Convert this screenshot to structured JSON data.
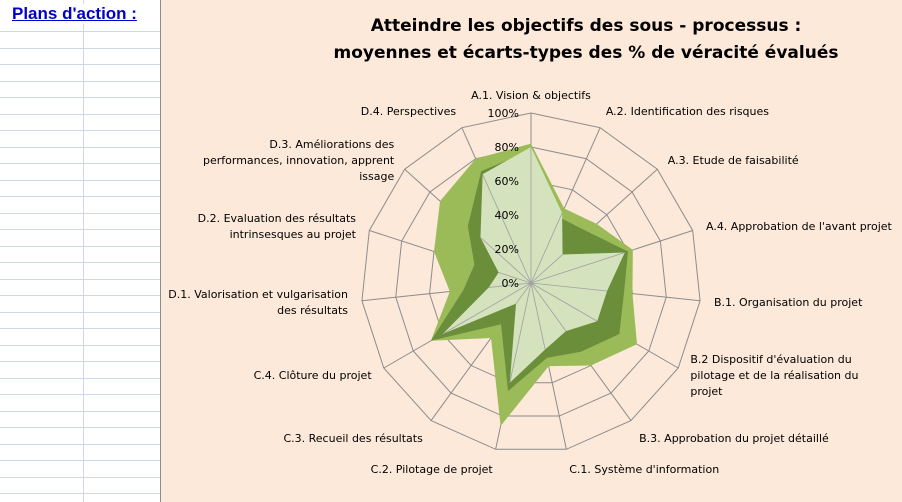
{
  "sheet": {
    "title": "Plans d'action :"
  },
  "chart_data": {
    "type": "radar",
    "title": "Atteindre les objectifs des sous - processus :",
    "subtitle": "moyennes et écarts-types des % de véracité évalués",
    "categories": [
      [
        "A.1. Vision & objectifs"
      ],
      [
        "A.2. Identification des risques"
      ],
      [
        "A.3. Etude de faisabilité"
      ],
      [
        "A.4. Approbation de l'avant projet"
      ],
      [
        "B.1. Organisation du projet"
      ],
      [
        "B.2 Dispositif d'évaluation du",
        "pilotage et de la réalisation du",
        "projet"
      ],
      [
        "B.3. Approbation du projet détaillé"
      ],
      [
        "C.1. Système d'information"
      ],
      [
        "C.2. Pilotage de projet"
      ],
      [
        "C.3. Recueil des résultats"
      ],
      [
        "C.4. Clôture du projet"
      ],
      [
        "D.1. Valorisation et vulgarisation",
        "des résultats"
      ],
      [
        "D.2. Evaluation des résultats",
        "intrinsesques au projet"
      ],
      [
        "D.3. Améliorations des",
        "performances, innovation, apprent",
        "issage"
      ],
      [
        "D.4. Perspectives"
      ]
    ],
    "ylim": [
      0,
      100
    ],
    "ticks": [
      "0%",
      "20%",
      "40%",
      "60%",
      "80%",
      "100%"
    ],
    "grid": true,
    "legend": "none",
    "series": [
      {
        "values": [
          82,
          48,
          52,
          63,
          60,
          72,
          60,
          50,
          86,
          40,
          68,
          48,
          60,
          72,
          80
        ],
        "color": "#9bbb59"
      },
      {
        "values": [
          78,
          42,
          45,
          60,
          55,
          60,
          50,
          45,
          65,
          30,
          68,
          40,
          35,
          50,
          72
        ],
        "color": "#6b8e3b"
      },
      {
        "values": [
          80,
          45,
          25,
          58,
          45,
          45,
          35,
          40,
          60,
          15,
          60,
          25,
          20,
          40,
          70
        ],
        "color": "#d4e2bd"
      }
    ]
  }
}
